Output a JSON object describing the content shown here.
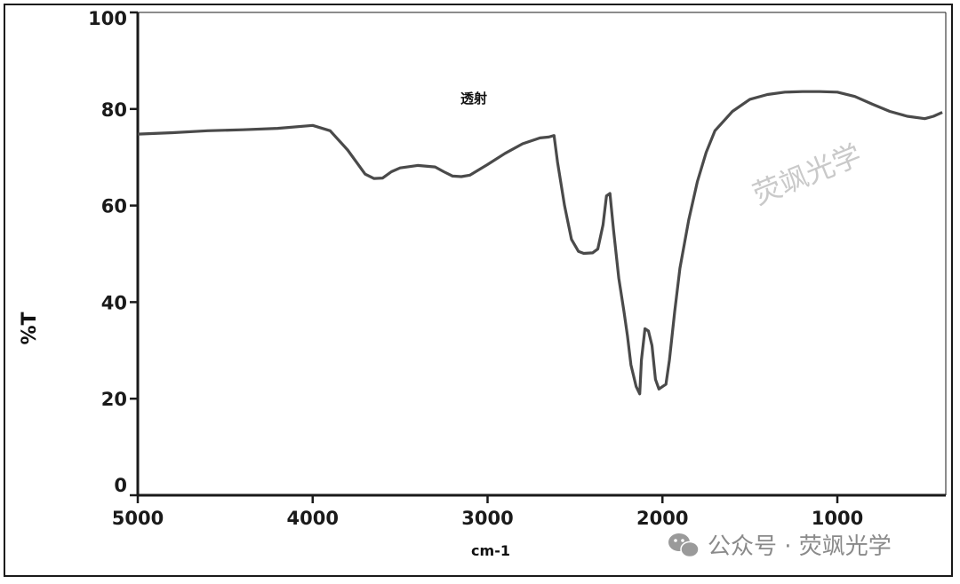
{
  "chart_data": {
    "type": "line",
    "title": "",
    "annotation": "透射",
    "xlabel": "cm-1",
    "ylabel": "%T",
    "xlim": [
      5000,
      380
    ],
    "ylim": [
      0,
      100
    ],
    "x_ticks": [
      5000,
      4000,
      3000,
      2000,
      1000
    ],
    "y_ticks": [
      0,
      20,
      40,
      60,
      80,
      100
    ],
    "grid": false,
    "series": [
      {
        "x": [
          5000,
          4800,
          4600,
          4400,
          4200,
          4000,
          3900,
          3800,
          3700,
          3650,
          3600,
          3550,
          3500,
          3400,
          3300,
          3250,
          3200,
          3150,
          3100,
          3000,
          2900,
          2800,
          2700,
          2650,
          2620,
          2600,
          2560,
          2520,
          2480,
          2450,
          2400,
          2370,
          2340,
          2320,
          2300,
          2280,
          2250,
          2220,
          2200,
          2180,
          2150,
          2130,
          2120,
          2100,
          2080,
          2060,
          2040,
          2020,
          2000,
          1980,
          1960,
          1930,
          1900,
          1850,
          1800,
          1750,
          1700,
          1600,
          1500,
          1400,
          1300,
          1200,
          1100,
          1000,
          900,
          800,
          700,
          600,
          500,
          450,
          400
        ],
        "y": [
          74.8,
          75.1,
          75.5,
          75.7,
          76.0,
          76.6,
          75.5,
          71.5,
          66.5,
          65.6,
          65.7,
          67.0,
          67.8,
          68.3,
          68.0,
          67.0,
          66.1,
          66.0,
          66.3,
          68.5,
          70.8,
          72.8,
          74.0,
          74.2,
          74.5,
          69.0,
          60.0,
          53.0,
          50.5,
          50.1,
          50.2,
          51.0,
          56.0,
          62.0,
          62.5,
          55.0,
          45.0,
          38.0,
          33.0,
          27.0,
          22.5,
          21.0,
          28.0,
          34.5,
          34.0,
          31.0,
          24.0,
          22.0,
          22.5,
          23.0,
          28.0,
          38.0,
          47.0,
          57.0,
          65.0,
          71.0,
          75.5,
          79.5,
          82.0,
          83.0,
          83.5,
          83.6,
          83.6,
          83.5,
          82.6,
          81.0,
          79.5,
          78.5,
          78.0,
          78.5,
          79.3
        ]
      }
    ]
  },
  "watermark": {
    "diagonal": "荧飒光学",
    "footer": "公众号 · 荧飒光学"
  }
}
